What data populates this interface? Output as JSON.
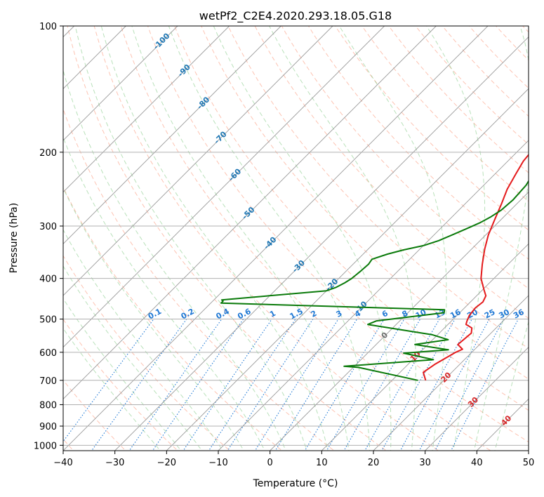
{
  "chart_data": {
    "type": "line",
    "title": "wetPf2_C2E4.2020.293.18.05.G18",
    "xlabel": "Temperature (°C)",
    "ylabel": "Pressure (hPa)",
    "xlim": [
      -40,
      50
    ],
    "ylim": [
      1030,
      100
    ],
    "y_scale": "log",
    "grid": true,
    "x_ticks": [
      -40,
      -30,
      -20,
      -10,
      0,
      10,
      20,
      30,
      40,
      50
    ],
    "x_tick_labels": [
      "−40",
      "−30",
      "−20",
      "−10",
      "0",
      "10",
      "20",
      "30",
      "40",
      "50"
    ],
    "y_ticks": [
      100,
      200,
      300,
      400,
      500,
      600,
      700,
      800,
      900,
      1000
    ],
    "y_tick_labels": [
      "100",
      "200",
      "300",
      "400",
      "500",
      "600",
      "700",
      "800",
      "900",
      "1000"
    ],
    "colors": {
      "temperature": "#e41a1c",
      "dewpoint": "#0a7a0a",
      "dry_adiabat": "#fc9272",
      "moist_adiabat": "#74c476",
      "mixing_ratio": "#1f78d4",
      "isotherm": "#555555",
      "dry_adiabat_label": "#d62728",
      "moist_label": "#1f77b4"
    },
    "series": [
      {
        "role": "temperature",
        "points": [
          [
            16.5,
            700
          ],
          [
            14.5,
            670
          ],
          [
            15.2,
            640
          ],
          [
            16.9,
            600
          ],
          [
            17.6,
            590
          ],
          [
            15.8,
            575
          ],
          [
            16.2,
            540
          ],
          [
            15.3,
            525
          ],
          [
            13.5,
            515
          ],
          [
            13.0,
            505
          ],
          [
            12.4,
            490
          ],
          [
            12.1,
            470
          ],
          [
            12.4,
            455
          ],
          [
            11.8,
            440
          ],
          [
            10.2,
            425
          ],
          [
            7.5,
            400
          ],
          [
            5.0,
            370
          ],
          [
            2.5,
            340
          ],
          [
            0.5,
            315
          ],
          [
            -1.2,
            290
          ],
          [
            -3.0,
            265
          ],
          [
            -4.7,
            245
          ],
          [
            -6.0,
            225
          ],
          [
            -7.0,
            210
          ],
          [
            -7.3,
            200
          ],
          [
            -7.3,
            190
          ],
          [
            -6.5,
            180
          ],
          [
            -5.2,
            170
          ],
          [
            -3.7,
            162
          ],
          [
            -2.5,
            155
          ],
          [
            -1.8,
            148
          ],
          [
            -1.4,
            140
          ],
          [
            -1.2,
            130
          ],
          [
            -0.8,
            120
          ],
          [
            0.2,
            113
          ],
          [
            1.8,
            106
          ],
          [
            3.5,
            100
          ]
        ]
      },
      {
        "role": "dewpoint",
        "points": [
          [
            15.0,
            700
          ],
          [
            1.0,
            652
          ],
          [
            -2.0,
            648
          ],
          [
            14.0,
            625
          ],
          [
            10.0,
            612
          ],
          [
            7.0,
            603
          ],
          [
            15.0,
            592
          ],
          [
            7.5,
            575
          ],
          [
            13.0,
            560
          ],
          [
            9.0,
            545
          ],
          [
            -5.5,
            515
          ],
          [
            -4.5,
            505
          ],
          [
            7.0,
            483
          ],
          [
            6.5,
            475
          ],
          [
            -38.0,
            458
          ],
          [
            -38.0,
            453
          ],
          [
            -38.5,
            450
          ],
          [
            -20.0,
            428
          ],
          [
            -18.8,
            420
          ],
          [
            -18.0,
            410
          ],
          [
            -17.5,
            400
          ],
          [
            -17.2,
            385
          ],
          [
            -17.0,
            370
          ],
          [
            -17.3,
            360
          ],
          [
            -15.3,
            350
          ],
          [
            -13.0,
            342
          ],
          [
            -10.0,
            334
          ],
          [
            -8.0,
            325
          ],
          [
            -6.5,
            315
          ],
          [
            -5.0,
            305
          ],
          [
            -3.5,
            295
          ],
          [
            -2.5,
            285
          ],
          [
            -1.8,
            275
          ],
          [
            -1.5,
            260
          ],
          [
            -1.8,
            240
          ],
          [
            -3.0,
            220
          ],
          [
            -4.5,
            200
          ],
          [
            -6.0,
            185
          ],
          [
            -6.8,
            170
          ],
          [
            -6.5,
            158
          ],
          [
            -5.5,
            150
          ],
          [
            -3.5,
            142
          ],
          [
            -1.5,
            135
          ],
          [
            0.8,
            126
          ],
          [
            2.5,
            118
          ],
          [
            4.0,
            110
          ],
          [
            5.2,
            102
          ],
          [
            5.5,
            100
          ]
        ]
      }
    ],
    "isotherm_labels": [
      {
        "value": -100,
        "text": "-100",
        "p": 109
      },
      {
        "value": -90,
        "text": "-90",
        "p": 128
      },
      {
        "value": -80,
        "text": "-80",
        "p": 153
      },
      {
        "value": -70,
        "text": "-70",
        "p": 185
      },
      {
        "value": -60,
        "text": "-60",
        "p": 227
      },
      {
        "value": -50,
        "text": "-50",
        "p": 280
      },
      {
        "value": -40,
        "text": "-40",
        "p": 330
      },
      {
        "value": -30,
        "text": "-30",
        "p": 375
      },
      {
        "value": -20,
        "text": "-20",
        "p": 415
      },
      {
        "value": -10,
        "text": "-10",
        "p": 470
      },
      {
        "value": 0,
        "text": "0",
        "p": 548
      },
      {
        "value": 10,
        "text": "10",
        "p": 615
      },
      {
        "value": 20,
        "text": "20",
        "p": 690
      },
      {
        "value": 30,
        "text": "30",
        "p": 790
      },
      {
        "value": 40,
        "text": "40",
        "p": 875
      }
    ],
    "mixing_ratio_labels": [
      "0.1",
      "0.2",
      "0.4",
      "0.6",
      "1",
      "1.5",
      "2",
      "3",
      "4",
      "6",
      "8",
      "10",
      "13",
      "16",
      "20",
      "25",
      "30",
      "36"
    ],
    "mixing_ratio_values": [
      0.1,
      0.2,
      0.4,
      0.6,
      1,
      1.5,
      2,
      3,
      4,
      6,
      8,
      10,
      13,
      16,
      20,
      25,
      30,
      36
    ]
  }
}
